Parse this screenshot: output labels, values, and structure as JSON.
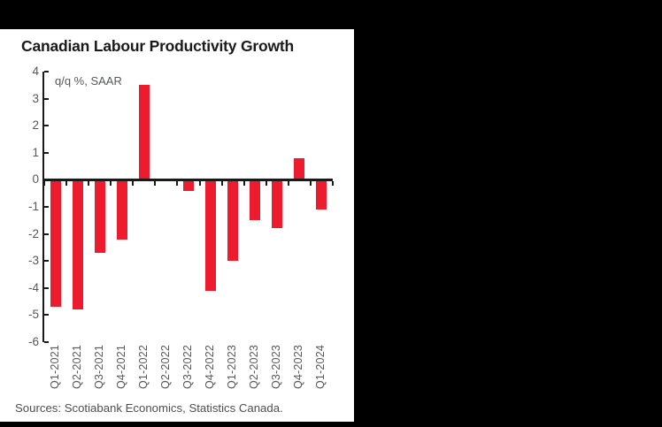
{
  "header_bar": {
    "color": "#000000"
  },
  "panel": {
    "background": "#ffffff",
    "source_note": "Sources: Scotiabank Economics, Statistics Canada."
  },
  "chart_data": {
    "type": "bar",
    "title": "Canadian Labour Productivity Growth",
    "annotation": "q/q %, SAAR",
    "categories": [
      "Q1-2021",
      "Q2-2021",
      "Q3-2021",
      "Q4-2021",
      "Q1-2022",
      "Q2-2022",
      "Q3-2022",
      "Q4-2022",
      "Q1-2023",
      "Q2-2023",
      "Q3-2023",
      "Q4-2023",
      "Q1-2024"
    ],
    "values": [
      -4.7,
      -4.8,
      -2.7,
      -2.2,
      3.5,
      0.0,
      -0.4,
      -4.1,
      -3.0,
      -1.5,
      -1.8,
      0.8,
      -1.1
    ],
    "ylim": [
      -6,
      4
    ],
    "ytick_step": 1,
    "grid": false,
    "legend": false,
    "xlabel": "",
    "ylabel": "",
    "bar_color": "#ED1B2D",
    "axis_color": "#1a1a1a",
    "tick_label_color": "#57585a"
  }
}
